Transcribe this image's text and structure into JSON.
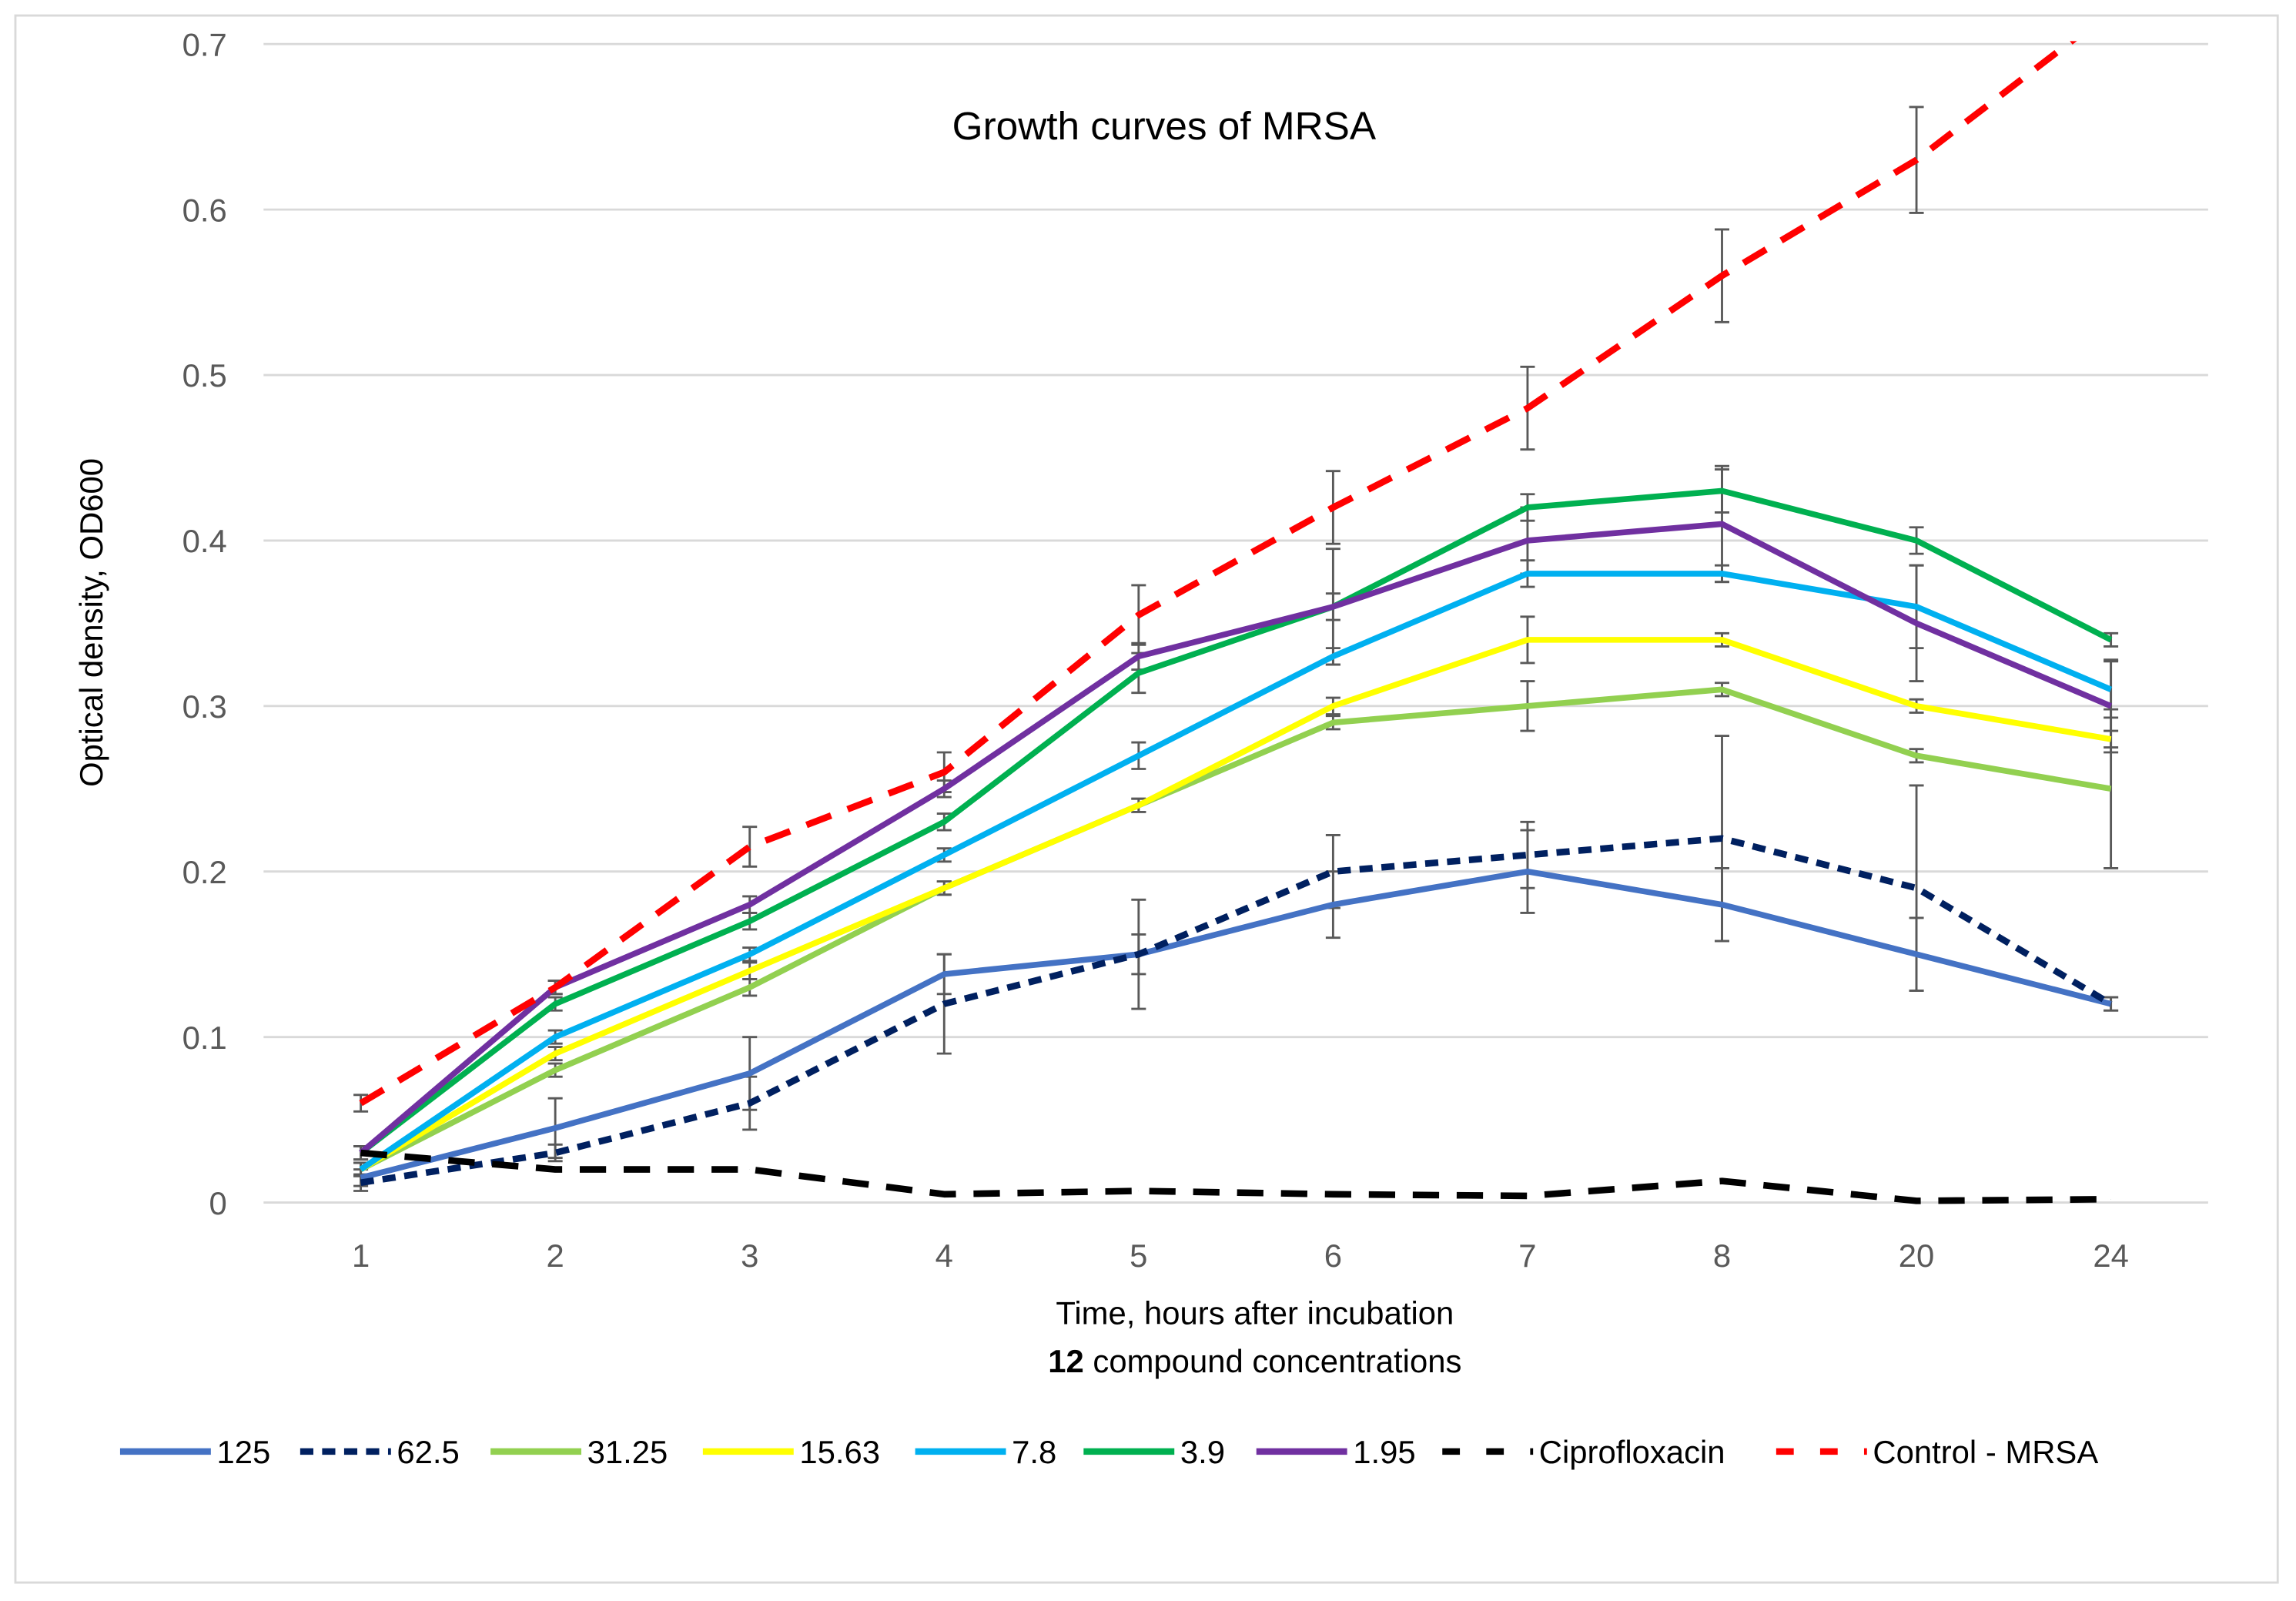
{
  "chart_data": {
    "type": "line",
    "title": "Growth curves of MRSA",
    "xlabel": "Time, hours after incubation",
    "xlabel_line2_bold": "12",
    "xlabel_line2_rest": " compound concentrations",
    "ylabel": "Optical density, OD600",
    "ylim": [
      0,
      0.7
    ],
    "yticks": [
      "0",
      "0.1",
      "0.2",
      "0.3",
      "0.4",
      "0.5",
      "0.6",
      "0.7"
    ],
    "grid": true,
    "legend_position": "bottom",
    "categories": [
      "1",
      "2",
      "3",
      "4",
      "5",
      "6",
      "7",
      "8",
      "20",
      "24"
    ],
    "series": [
      {
        "name": "125",
        "color": "#4472C4",
        "dash": "solid",
        "values": [
          0.015,
          0.045,
          0.078,
          0.138,
          0.15,
          0.18,
          0.2,
          0.18,
          0.15,
          0.12
        ],
        "errors": [
          0.005,
          0.018,
          0.022,
          0.012,
          0.033,
          0.02,
          0.025,
          0.022,
          0.022,
          0.004
        ]
      },
      {
        "name": "62.5",
        "color": "#002060",
        "dash": "dot",
        "values": [
          0.012,
          0.03,
          0.06,
          0.12,
          0.15,
          0.2,
          0.21,
          0.22,
          0.19,
          0.12
        ],
        "errors": [
          0.005,
          0.005,
          0.016,
          0.03,
          0.012,
          0.022,
          0.02,
          0.062,
          0.062,
          0.004
        ]
      },
      {
        "name": "31.25",
        "color": "#92D050",
        "dash": "solid",
        "values": [
          0.02,
          0.08,
          0.13,
          0.19,
          0.24,
          0.29,
          0.3,
          0.31,
          0.27,
          0.25
        ],
        "errors": [
          0.004,
          0.004,
          0.005,
          0.004,
          0.004,
          0.004,
          0.015,
          0.004,
          0.004,
          0.048
        ]
      },
      {
        "name": "15.63",
        "color": "#FFFF00",
        "dash": "solid",
        "values": [
          0.02,
          0.09,
          0.14,
          0.19,
          0.24,
          0.3,
          0.34,
          0.34,
          0.3,
          0.28
        ],
        "errors": [
          0.004,
          0.004,
          0.005,
          0.004,
          0.004,
          0.005,
          0.014,
          0.004,
          0.004,
          0.005
        ]
      },
      {
        "name": "7.8",
        "color": "#00B0F0",
        "dash": "solid",
        "values": [
          0.02,
          0.1,
          0.15,
          0.21,
          0.27,
          0.33,
          0.38,
          0.38,
          0.36,
          0.31
        ],
        "errors": [
          0.004,
          0.004,
          0.004,
          0.004,
          0.008,
          0.005,
          0.008,
          0.005,
          0.025,
          0.017
        ]
      },
      {
        "name": "3.9",
        "color": "#00B050",
        "dash": "solid",
        "values": [
          0.03,
          0.12,
          0.17,
          0.23,
          0.32,
          0.36,
          0.42,
          0.43,
          0.4,
          0.34
        ],
        "errors": [
          0.004,
          0.004,
          0.005,
          0.005,
          0.012,
          0.008,
          0.008,
          0.013,
          0.008,
          0.004
        ]
      },
      {
        "name": "1.95",
        "color": "#7030A0",
        "dash": "solid",
        "values": [
          0.03,
          0.13,
          0.18,
          0.25,
          0.33,
          0.36,
          0.4,
          0.41,
          0.35,
          0.3
        ],
        "errors": [
          0.004,
          0.004,
          0.005,
          0.005,
          0.008,
          0.035,
          0.02,
          0.035,
          0.035,
          0.028
        ]
      },
      {
        "name": "Ciprofloxacin",
        "color": "#000000",
        "dash": "dash",
        "values": [
          0.03,
          0.02,
          0.02,
          0.005,
          0.007,
          0.005,
          0.004,
          0.013,
          0.001,
          0.002
        ],
        "errors": [
          0,
          0,
          0,
          0,
          0,
          0,
          0,
          0,
          0,
          0
        ]
      },
      {
        "name": "Control - MRSA",
        "color": "#FF0000",
        "dash": "dash",
        "values": [
          0.06,
          0.13,
          0.215,
          0.26,
          0.355,
          0.42,
          0.48,
          0.56,
          0.63,
          0.72
        ],
        "errors": [
          0.005,
          0.004,
          0.012,
          0.012,
          0.018,
          0.022,
          0.025,
          0.028,
          0.032,
          0
        ]
      }
    ]
  }
}
